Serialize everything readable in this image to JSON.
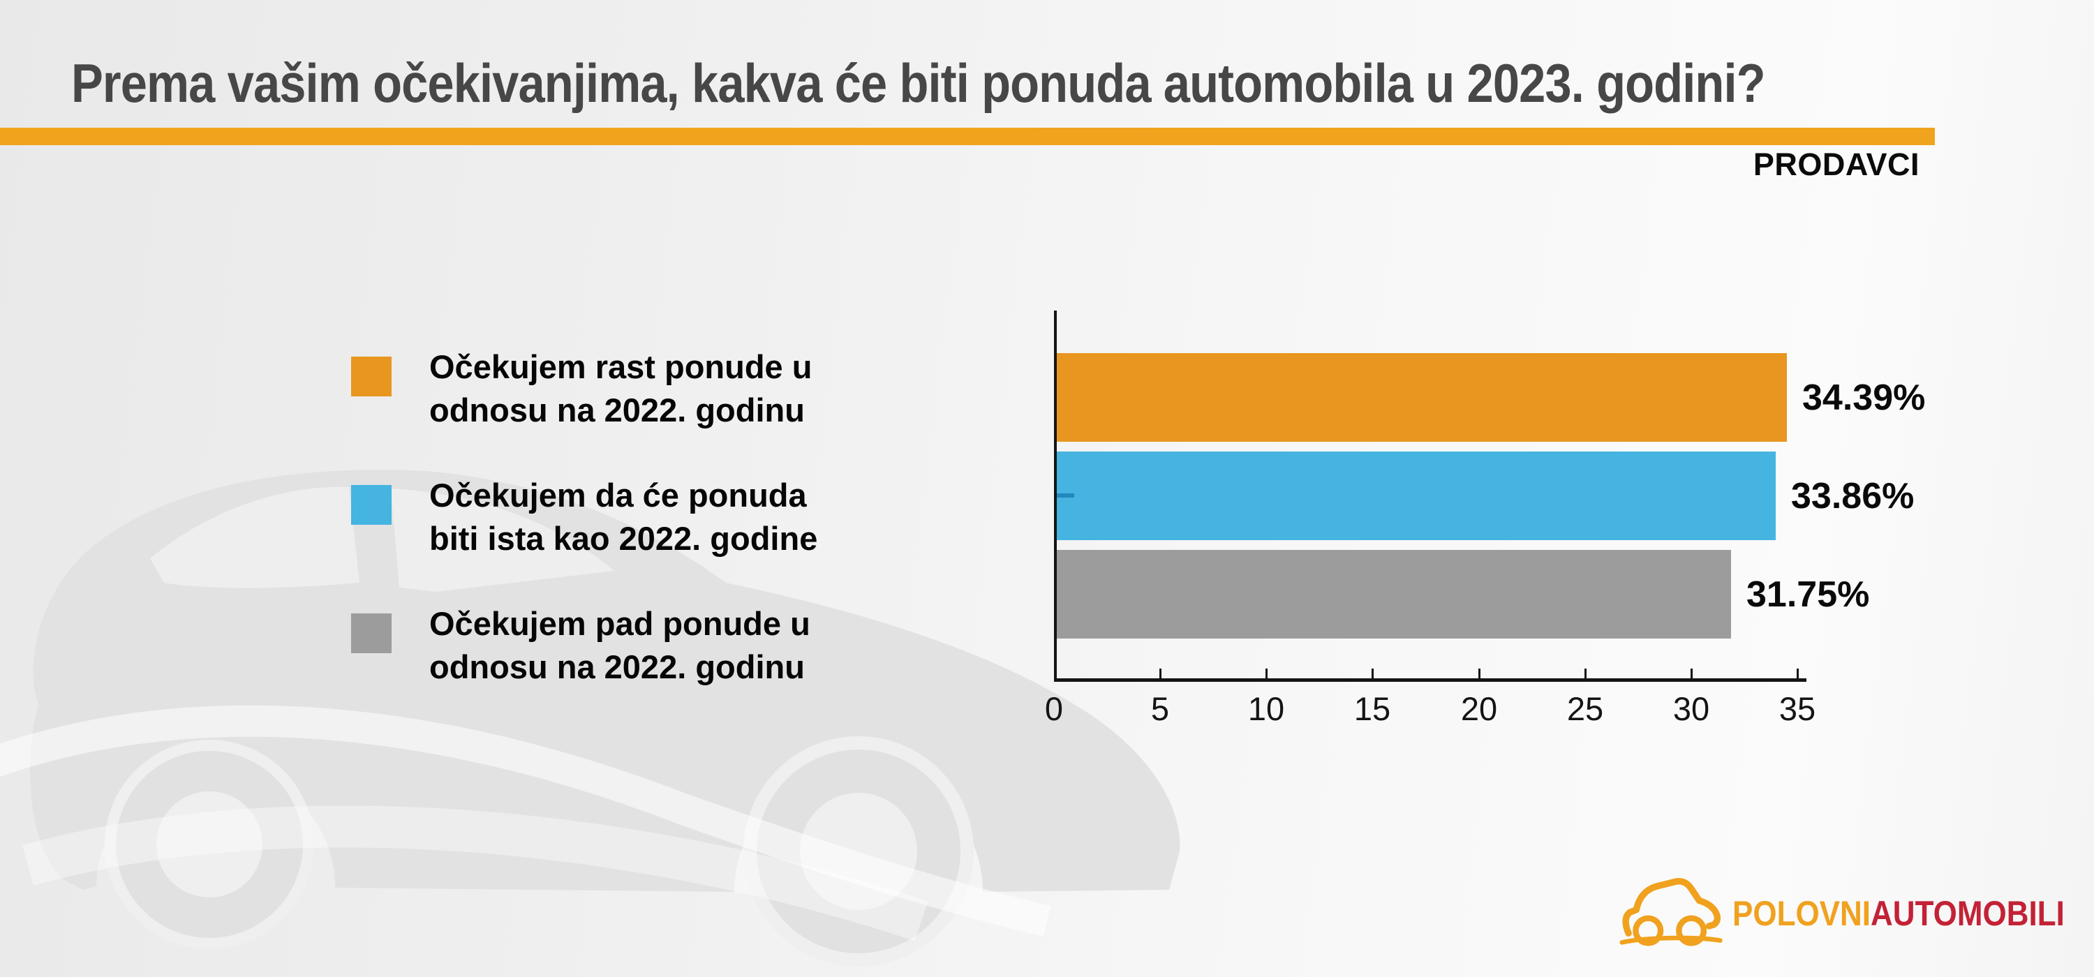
{
  "header": {
    "title": "Prema vašim očekivanjima, kakva će biti ponuda automobila u 2023. godini?",
    "audience_label": "PRODAVCI",
    "accent_color": "#f0a41d",
    "title_color": "#474747"
  },
  "legend": {
    "items": [
      {
        "line1": "Očekujem rast ponude u",
        "line2": "odnosu na 2022. godinu",
        "color": "#e8961f"
      },
      {
        "line1": "Očekujem da će ponuda",
        "line2": "biti ista kao 2022. godine",
        "color": "#45b4e0"
      },
      {
        "line1": "Očekujem pad ponude u",
        "line2": "odnosu na 2022. godinu",
        "color": "#9c9c9c"
      }
    ]
  },
  "chart_data": {
    "type": "bar",
    "orientation": "horizontal",
    "categories": [
      "Očekujem rast ponude u odnosu na 2022. godinu",
      "Očekujem da će ponuda biti ista kao 2022. godine",
      "Očekujem pad ponude u odnosu na 2022. godinu"
    ],
    "values": [
      34.39,
      33.86,
      31.75
    ],
    "value_labels": [
      "34.39%",
      "33.86%",
      "31.75%"
    ],
    "bar_colors": [
      "#e8961f",
      "#45b4e0",
      "#9c9c9c"
    ],
    "xlim": [
      0,
      35
    ],
    "x_ticks": [
      0,
      5,
      10,
      15,
      20,
      25,
      30,
      35
    ],
    "grid": false,
    "legend_position": "left",
    "axis_color": "#141414",
    "tick_label_color": "#141414",
    "value_label_color": "#0a0a0a",
    "axis_dash": {
      "bar_index": 1,
      "color": "#2187bd"
    }
  },
  "logo": {
    "brand_part1": "POLOVNI",
    "brand_part2": "AUTOMOBILI",
    "part1_color": "#f0a11e",
    "part2_color": "#c32236",
    "icon": "car-sketch-icon"
  },
  "watermark": {
    "icon": "car-silhouette",
    "color": "#e2e2e2"
  }
}
